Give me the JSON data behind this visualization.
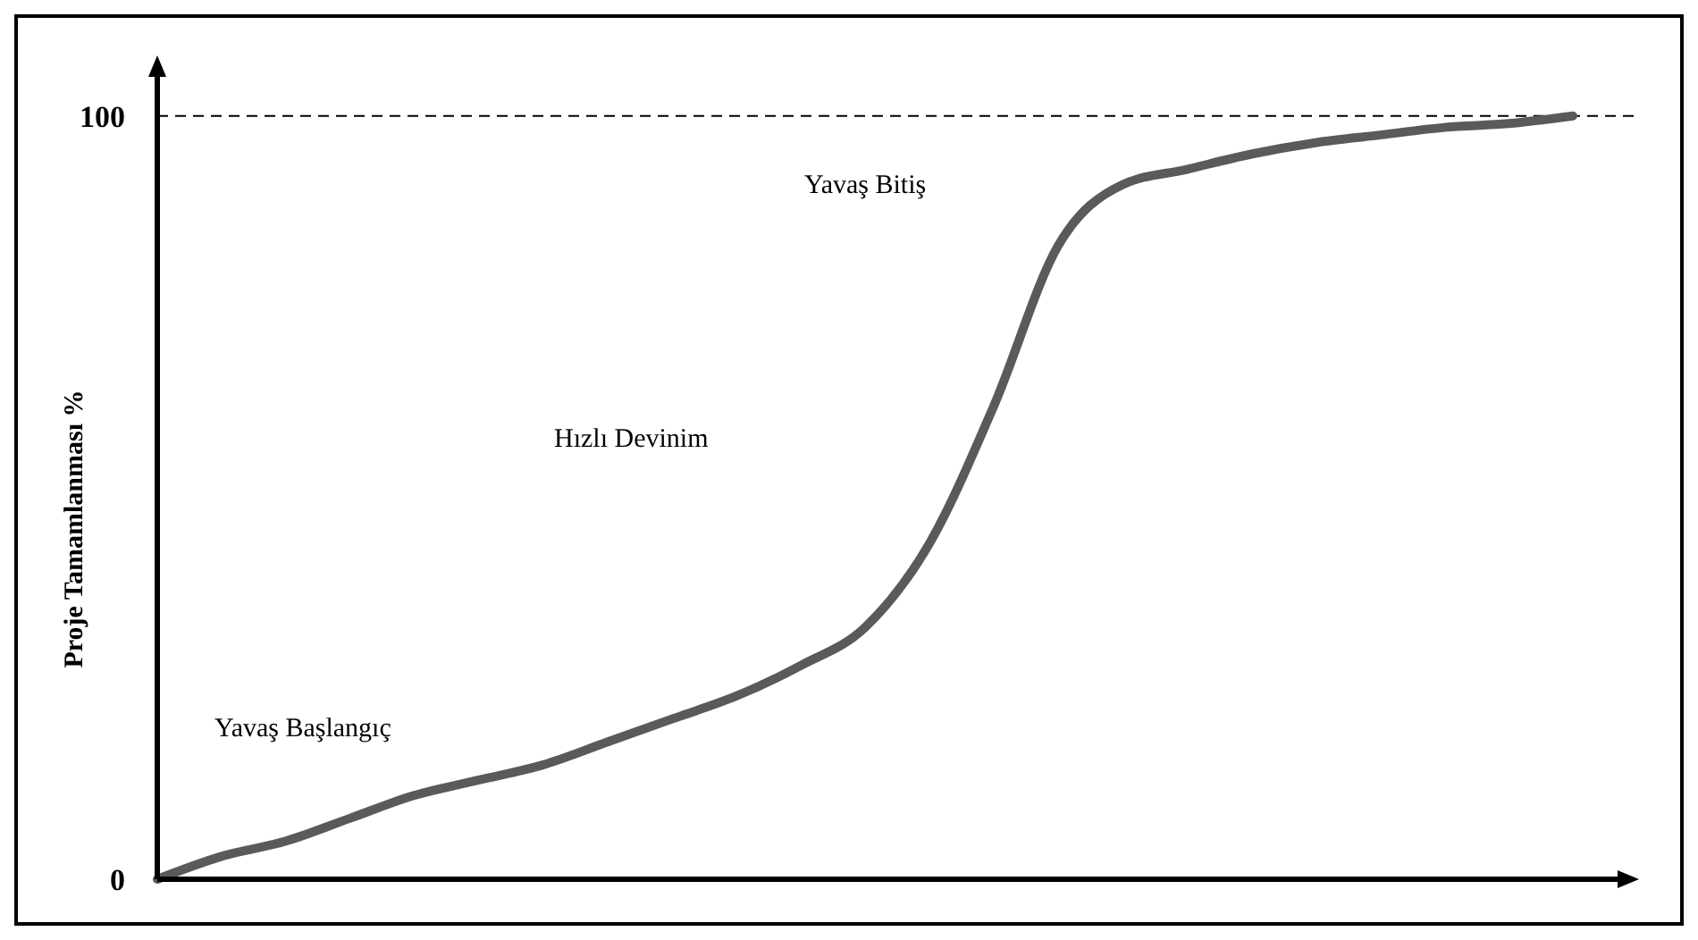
{
  "chart_data": {
    "type": "line",
    "ylabel": "Proje Tamamlanması %",
    "categories": [
      null,
      null,
      null,
      null,
      null,
      null,
      null,
      null,
      null,
      null,
      null,
      null,
      null,
      null,
      null,
      null,
      null,
      null,
      null,
      null,
      null,
      null,
      null
    ],
    "series": [
      {
        "color": "#5a5a5a",
        "values": [
          0,
          3,
          5,
          8,
          11,
          13,
          15,
          18,
          21,
          24,
          28,
          33,
          44,
          62,
          83,
          91,
          93,
          95,
          96.5,
          97.5,
          98.5,
          99,
          100
        ]
      }
    ],
    "ylim": [
      0,
      107
    ],
    "yticks": [
      0,
      100
    ],
    "tick_labels": "y",
    "grid": false,
    "marker": "none",
    "line_style": "solid",
    "ref_lines": [
      {
        "axis": "y",
        "value": 100,
        "line_style": "dashed",
        "color": "#000000"
      }
    ],
    "annotations": [
      "Yavaş Başlangıç",
      "Hızlı Devinim",
      "Yavaş Bitiş"
    ]
  }
}
